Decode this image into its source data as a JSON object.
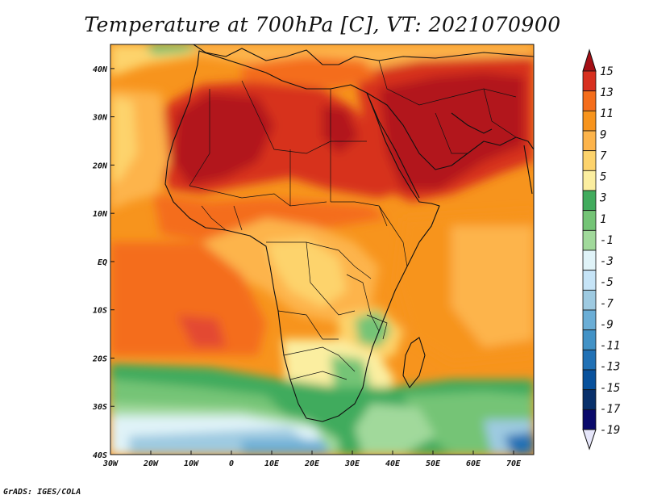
{
  "title": "Temperature at 700hPa [C], VT: 2021070900",
  "credit": "GrADS: IGES/COLA",
  "map": {
    "lon_range": [
      -30,
      75
    ],
    "lat_range": [
      -40,
      45
    ],
    "x_ticks": [
      {
        "lon": -30,
        "label": "30W"
      },
      {
        "lon": -20,
        "label": "20W"
      },
      {
        "lon": -10,
        "label": "10W"
      },
      {
        "lon": 0,
        "label": "0"
      },
      {
        "lon": 10,
        "label": "10E"
      },
      {
        "lon": 20,
        "label": "20E"
      },
      {
        "lon": 30,
        "label": "30E"
      },
      {
        "lon": 40,
        "label": "40E"
      },
      {
        "lon": 50,
        "label": "50E"
      },
      {
        "lon": 60,
        "label": "60E"
      },
      {
        "lon": 70,
        "label": "70E"
      }
    ],
    "y_ticks": [
      {
        "lat": 40,
        "label": "40N"
      },
      {
        "lat": 30,
        "label": "30N"
      },
      {
        "lat": 20,
        "label": "20N"
      },
      {
        "lat": 10,
        "label": "10N"
      },
      {
        "lat": 0,
        "label": "EQ"
      },
      {
        "lat": -10,
        "label": "10S"
      },
      {
        "lat": -20,
        "label": "20S"
      },
      {
        "lat": -30,
        "label": "30S"
      },
      {
        "lat": -40,
        "label": "40S"
      }
    ]
  },
  "colorbar": {
    "labels": [
      "15",
      "13",
      "11",
      "9",
      "7",
      "5",
      "3",
      "1",
      "-1",
      "-3",
      "-5",
      "-7",
      "-9",
      "-11",
      "-13",
      "-15",
      "-17",
      "-19"
    ],
    "colors_top_to_bottom": [
      "#a50f15",
      "#d7301f",
      "#f46d1b",
      "#f7941d",
      "#fdb44b",
      "#fdd36c",
      "#fbeea0",
      "#41ab5d",
      "#74c476",
      "#a1d99b",
      "#e0f3f8",
      "#c6e4f7",
      "#9ecae1",
      "#6baed6",
      "#4292c6",
      "#2171b5",
      "#08519c",
      "#08306b",
      "#0a0a6b",
      "#e6e6fa"
    ]
  }
}
